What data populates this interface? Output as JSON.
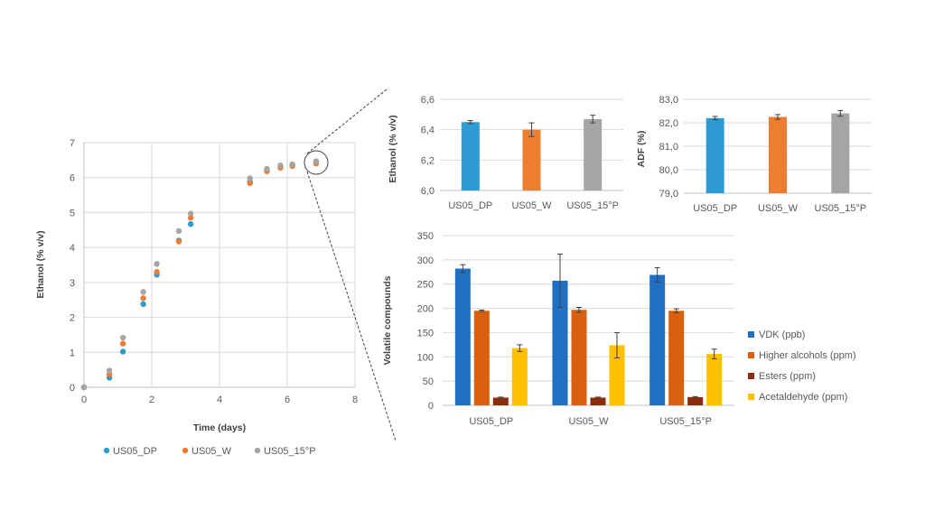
{
  "chart_data": [
    {
      "id": "scatter",
      "type": "scatter",
      "xlabel": "Time (days)",
      "ylabel": "Ethanol (% v/v)",
      "xlim": [
        0,
        8
      ],
      "ylim": [
        0,
        7
      ],
      "xticks": [
        0,
        2,
        4,
        6,
        8
      ],
      "yticks": [
        0,
        1,
        2,
        3,
        4,
        5,
        6,
        7
      ],
      "legend_position": "bottom",
      "series": [
        {
          "name": "US05_DP",
          "color": "#2E9BD5",
          "x": [
            0,
            0.75,
            1.15,
            1.75,
            2.15,
            2.8,
            3.15,
            4.9,
            5.4,
            5.8,
            6.15,
            6.85
          ],
          "y": [
            0,
            0.27,
            1.02,
            2.38,
            3.22,
            4.2,
            4.67,
            5.88,
            6.2,
            6.3,
            6.35,
            6.45
          ]
        },
        {
          "name": "US05_W",
          "color": "#ED7D31",
          "x": [
            0,
            0.75,
            1.15,
            1.75,
            2.15,
            2.8,
            3.15,
            4.9,
            5.4,
            5.8,
            6.15,
            6.85
          ],
          "y": [
            0,
            0.37,
            1.25,
            2.55,
            3.3,
            4.17,
            4.85,
            5.84,
            6.18,
            6.28,
            6.33,
            6.4
          ]
        },
        {
          "name": "US05_15°P",
          "color": "#A5A5A5",
          "x": [
            0,
            0.75,
            1.15,
            1.75,
            2.15,
            2.8,
            3.15,
            4.9,
            5.4,
            5.8,
            6.15,
            6.85
          ],
          "y": [
            0,
            0.48,
            1.42,
            2.73,
            3.53,
            4.47,
            4.97,
            5.98,
            6.25,
            6.35,
            6.38,
            6.47
          ]
        }
      ]
    },
    {
      "id": "ethanol-bar",
      "type": "bar",
      "ylabel": "Ethanol (% v/v)",
      "categories": [
        "US05_DP",
        "US05_W",
        "US05_15°P"
      ],
      "values": [
        6.45,
        6.4,
        6.47
      ],
      "errors": [
        0.01,
        0.045,
        0.025
      ],
      "colors": [
        "#2E9BD5",
        "#ED7D31",
        "#A5A5A5"
      ],
      "ylim": [
        6.0,
        6.6
      ],
      "yticks": [
        "6,0",
        "6,2",
        "6,4",
        "6,6"
      ]
    },
    {
      "id": "adf-bar",
      "type": "bar",
      "ylabel": "ADF (%)",
      "categories": [
        "US05_DP",
        "US05_W",
        "US05_15°P"
      ],
      "values": [
        82.2,
        82.25,
        82.4
      ],
      "errors": [
        0.07,
        0.1,
        0.12
      ],
      "colors": [
        "#2E9BD5",
        "#ED7D31",
        "#A5A5A5"
      ],
      "ylim": [
        79.0,
        83.0
      ],
      "yticks": [
        "79,0",
        "80,0",
        "81,0",
        "82,0",
        "83,0"
      ]
    },
    {
      "id": "volatile-bar",
      "type": "bar",
      "ylabel": "Volatile compounds",
      "categories": [
        "US05_DP",
        "US05_W",
        "US05_15°P"
      ],
      "ylim": [
        0,
        350
      ],
      "yticks": [
        "0",
        "50",
        "100",
        "150",
        "200",
        "250",
        "300",
        "350"
      ],
      "legend_position": "right",
      "series": [
        {
          "name": "VDK (ppb)",
          "color": "#1F6FC5",
          "values": [
            282,
            257,
            269
          ],
          "errors": [
            8,
            55,
            15
          ]
        },
        {
          "name": "Higher alcohols (ppm)",
          "color": "#D9600F",
          "values": [
            195,
            197,
            195
          ],
          "errors": [
            1.5,
            5,
            4
          ]
        },
        {
          "name": "Esters (ppm)",
          "color": "#8B2C0A",
          "values": [
            16,
            16,
            17
          ],
          "errors": [
            1,
            1,
            1
          ]
        },
        {
          "name": "Acetaldehyde (ppm)",
          "color": "#FFC000",
          "values": [
            118,
            124,
            106
          ],
          "errors": [
            7,
            26,
            10
          ]
        }
      ]
    }
  ]
}
